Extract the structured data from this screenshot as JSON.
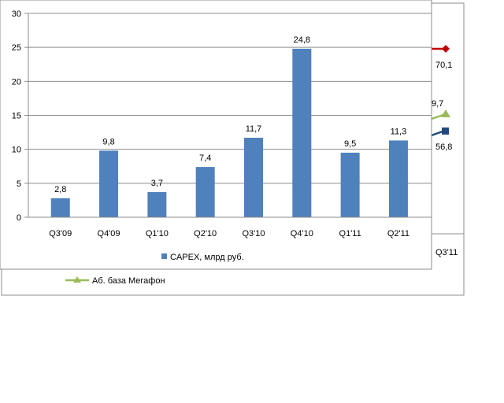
{
  "chart_data": {
    "type": "bar",
    "categories": [
      "Q3'09",
      "Q4'09",
      "Q1'10",
      "Q2'10",
      "Q3'10",
      "Q4'10",
      "Q1'11",
      "Q2'11"
    ],
    "series": [
      {
        "name": "CAPEX, млрд руб.",
        "values": [
          2.8,
          9.8,
          3.7,
          7.4,
          11.7,
          24.8,
          9.5,
          11.3
        ],
        "labels": [
          "2,8",
          "9,8",
          "3,7",
          "7,4",
          "11,7",
          "24,8",
          "9,5",
          "11,3"
        ],
        "color": "#4F81BD"
      }
    ],
    "yticks": [
      "0",
      "5",
      "10",
      "15",
      "20",
      "25",
      "30"
    ],
    "ylim": [
      0,
      30
    ],
    "grid": true,
    "legend": "bottom"
  },
  "background_chart": {
    "last_category": "Q3'11",
    "legend_entry": "Аб. база Мегафон",
    "values": [
      {
        "label": "70,1",
        "color": "#C00000",
        "marker": "diamond"
      },
      {
        "label": "9,7",
        "color": "#9BBB59",
        "marker": "triangle"
      },
      {
        "label": "56,8",
        "color": "#1F497D",
        "marker": "square"
      }
    ]
  }
}
